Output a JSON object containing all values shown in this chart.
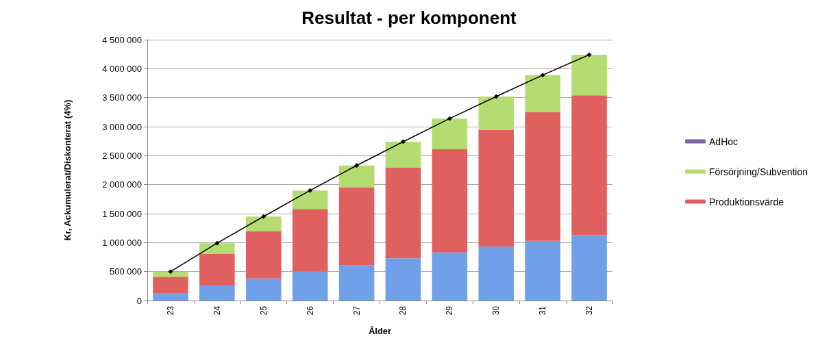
{
  "chart_data": {
    "type": "bar",
    "title": "Resultat - per komponent",
    "xlabel": "Ålder",
    "ylabel": "Kr, Ackumulerat/Diskonterat (4%)",
    "categories": [
      "23",
      "24",
      "25",
      "26",
      "27",
      "28",
      "29",
      "30",
      "31",
      "32"
    ],
    "stacked": true,
    "grid": "y",
    "legend": "right",
    "ylim": [
      0,
      4500000
    ],
    "yticks": [
      {
        "value": 0,
        "label": "0"
      },
      {
        "value": 500000,
        "label": "500 000"
      },
      {
        "value": 1000000,
        "label": "1 000 000"
      },
      {
        "value": 1500000,
        "label": "1 500 000"
      },
      {
        "value": 2000000,
        "label": "2 000 000"
      },
      {
        "value": 2500000,
        "label": "2 500 000"
      },
      {
        "value": 3000000,
        "label": "3 000 000"
      },
      {
        "value": 3500000,
        "label": "3 500 000"
      },
      {
        "value": 4000000,
        "label": "4 000 000"
      },
      {
        "value": 4500000,
        "label": "4 500 000"
      }
    ],
    "series": [
      {
        "color": "#6fa0e8",
        "values": [
          130000,
          260000,
          380000,
          500000,
          610000,
          730000,
          830000,
          930000,
          1030000,
          1130000
        ]
      },
      {
        "name": "Produktionsvärde",
        "color": "#e06060",
        "values": [
          280000,
          550000,
          820000,
          1080000,
          1340000,
          1560000,
          1780000,
          2010000,
          2220000,
          2410000
        ]
      },
      {
        "name": "Försörjning/Subvention",
        "color": "#b5dc70",
        "values": [
          90000,
          180000,
          250000,
          320000,
          380000,
          450000,
          530000,
          580000,
          640000,
          700000
        ]
      },
      {
        "name": "AdHoc",
        "color": "#8064a2",
        "values": [
          0,
          0,
          0,
          0,
          0,
          0,
          0,
          0,
          0,
          0
        ]
      },
      {
        "type": "line",
        "color": "#000000",
        "marker": "diamond",
        "line_style": "solid",
        "values": [
          500000,
          990000,
          1450000,
          1900000,
          2330000,
          2740000,
          3140000,
          3520000,
          3890000,
          4240000
        ]
      }
    ]
  }
}
